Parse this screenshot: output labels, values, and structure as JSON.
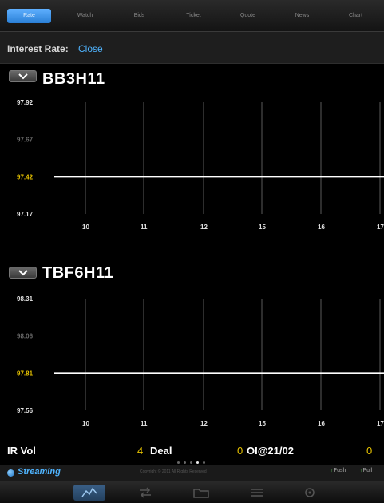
{
  "tabs": [
    {
      "label": "Rate",
      "active": true
    },
    {
      "label": "Watch",
      "active": false
    },
    {
      "label": "Bids",
      "active": false
    },
    {
      "label": "Ticket",
      "active": false
    },
    {
      "label": "Quote",
      "active": false
    },
    {
      "label": "News",
      "active": false
    },
    {
      "label": "Chart",
      "active": false
    }
  ],
  "header": {
    "label": "Interest Rate:",
    "value": "Close"
  },
  "instruments": [
    {
      "name": "BB3H11"
    },
    {
      "name": "TBF6H11"
    }
  ],
  "chart_data": [
    {
      "type": "line",
      "title": "BB3H11",
      "y_ticks": [
        "97.92",
        "97.67",
        "97.42",
        "97.17"
      ],
      "x_ticks": [
        "10",
        "11",
        "12",
        "15",
        "16",
        "17"
      ],
      "ylim": [
        97.17,
        97.92
      ],
      "series": [
        {
          "y": 97.42
        }
      ],
      "highlight_tick": "97.42",
      "line_color": "#ffffff",
      "grid": true
    },
    {
      "type": "line",
      "title": "TBF6H11",
      "y_ticks": [
        "98.31",
        "98.06",
        "97.81",
        "97.56"
      ],
      "x_ticks": [
        "10",
        "11",
        "12",
        "15",
        "16",
        "17"
      ],
      "ylim": [
        97.56,
        98.31
      ],
      "series": [
        {
          "y": 97.81
        }
      ],
      "highlight_tick": "97.81",
      "line_color": "#ffffff",
      "grid": true
    }
  ],
  "footer": {
    "ir_vol_label": "IR Vol",
    "ir_vol_value": "4",
    "deal_label": "Deal",
    "deal_value": "0",
    "oi_label": "OI@21/02",
    "oi_value": "0"
  },
  "status": {
    "streaming": "Streaming",
    "copyright": "Copyright © 2011 All Rights Reserved",
    "push": "Push",
    "pull": "Pull"
  },
  "toolbar": {
    "items": [
      {
        "icon": "chart-icon",
        "active": true
      },
      {
        "icon": "transfer-icon",
        "active": false
      },
      {
        "icon": "folder-icon",
        "active": false
      },
      {
        "icon": "swap-icon",
        "active": false
      },
      {
        "icon": "settings-icon",
        "active": false
      }
    ]
  },
  "colors": {
    "accent": "#4fb4ff",
    "highlight_tick": "#e6c200",
    "green": "#5fd25f",
    "yellow_value": "#e6c200"
  }
}
